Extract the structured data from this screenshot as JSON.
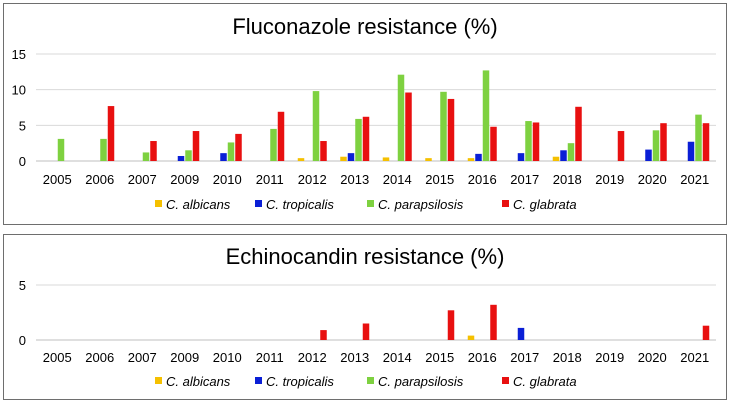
{
  "chart_data": [
    {
      "type": "bar",
      "title": "Fluconazole resistance (%)",
      "xlabel": "",
      "ylabel": "",
      "ylim": [
        0,
        15
      ],
      "yticks": [
        0,
        5,
        10,
        15
      ],
      "grid": true,
      "legend_position": "bottom",
      "categories": [
        "2005",
        "2006",
        "2007",
        "2009",
        "2010",
        "2011",
        "2012",
        "2013",
        "2014",
        "2015",
        "2016",
        "2017",
        "2018",
        "2019",
        "2020",
        "2021"
      ],
      "series": [
        {
          "name": "C. albicans",
          "color": "#f5c000",
          "values": [
            0,
            0,
            0,
            0,
            0,
            0,
            0.4,
            0.6,
            0.5,
            0.4,
            0.4,
            0,
            0.6,
            0,
            0,
            0
          ]
        },
        {
          "name": "C. tropicalis",
          "color": "#0a1fd6",
          "values": [
            0,
            0,
            0,
            0.7,
            1.1,
            0,
            0,
            1.1,
            0,
            0,
            1.0,
            1.1,
            1.5,
            0,
            1.6,
            2.7
          ]
        },
        {
          "name": "C. parapsilosis",
          "color": "#7ed140",
          "values": [
            3.1,
            3.1,
            1.2,
            1.5,
            2.6,
            4.5,
            9.8,
            5.9,
            12.1,
            9.7,
            12.7,
            5.6,
            2.5,
            0,
            4.3,
            6.5
          ]
        },
        {
          "name": "C. glabrata",
          "color": "#e81010",
          "values": [
            0,
            7.7,
            2.8,
            4.2,
            3.8,
            6.9,
            2.8,
            6.2,
            9.6,
            8.7,
            4.8,
            5.4,
            7.6,
            4.2,
            5.3,
            5.3
          ]
        }
      ]
    },
    {
      "type": "bar",
      "title": "Echinocandin resistance (%)",
      "xlabel": "",
      "ylabel": "",
      "ylim": [
        0,
        5
      ],
      "yticks": [
        0,
        5
      ],
      "grid": true,
      "legend_position": "bottom",
      "categories": [
        "2005",
        "2006",
        "2007",
        "2009",
        "2010",
        "2011",
        "2012",
        "2013",
        "2014",
        "2015",
        "2016",
        "2017",
        "2018",
        "2019",
        "2020",
        "2021"
      ],
      "series": [
        {
          "name": "C. albicans",
          "color": "#f5c000",
          "values": [
            0,
            0,
            0,
            0,
            0,
            0,
            0,
            0,
            0,
            0,
            0.4,
            0,
            0,
            0,
            0,
            0
          ]
        },
        {
          "name": "C. tropicalis",
          "color": "#0a1fd6",
          "values": [
            0,
            0,
            0,
            0,
            0,
            0,
            0,
            0,
            0,
            0,
            0,
            1.1,
            0,
            0,
            0,
            0
          ]
        },
        {
          "name": "C. parapsilosis",
          "color": "#7ed140",
          "values": [
            0,
            0,
            0,
            0,
            0,
            0,
            0,
            0,
            0,
            0,
            0,
            0,
            0,
            0,
            0,
            0
          ]
        },
        {
          "name": "C. glabrata",
          "color": "#e81010",
          "values": [
            0,
            0,
            0,
            0,
            0,
            0,
            0.9,
            1.5,
            0,
            2.7,
            3.2,
            0,
            0,
            0,
            0,
            1.3
          ]
        }
      ]
    }
  ]
}
